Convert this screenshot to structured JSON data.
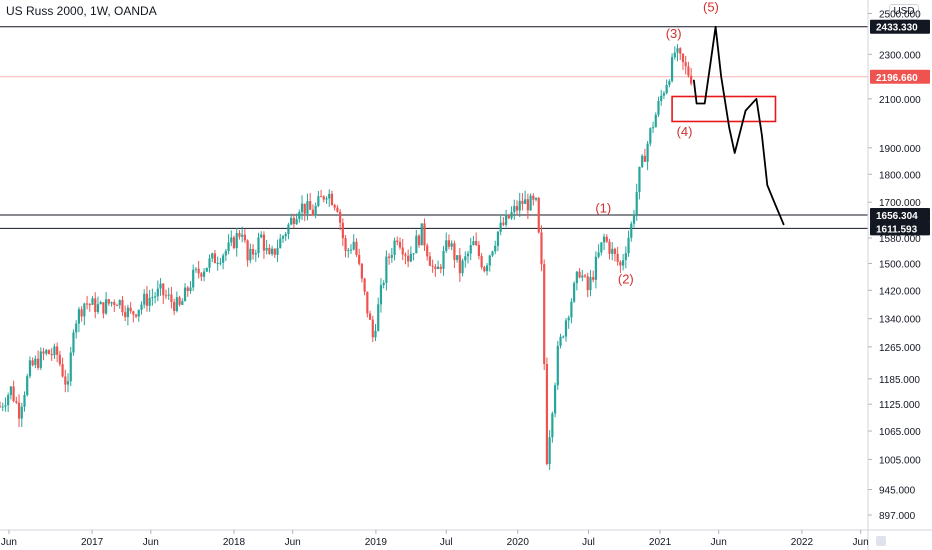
{
  "header": {
    "title": "US Russ 2000, 1W, OANDA",
    "currency": "USD"
  },
  "colors": {
    "up": "#26a69a",
    "down": "#ef5350",
    "level_line": "#131722",
    "box": "#e8171c",
    "label": "#d32f2f",
    "last_price": "#ef5350",
    "drawing": "#000000",
    "axis_text": "#131722"
  },
  "chart_data": {
    "type": "candlestick",
    "symbol": "US Russ 2000",
    "interval": "1W",
    "source": "OANDA",
    "y_scale": "log",
    "y_range": [
      870,
      2570
    ],
    "x_range": [
      "2016-05-09",
      "2022-06-20"
    ],
    "y_ticks": [
      "2500.000",
      "2300.000",
      "2100.000",
      "1900.000",
      "1800.000",
      "1700.000",
      "1580.000",
      "1500.000",
      "1420.000",
      "1340.000",
      "1265.000",
      "1185.000",
      "1125.000",
      "1065.000",
      "1005.000",
      "945.000",
      "897.000"
    ],
    "y_tick_values": [
      2500,
      2300,
      2100,
      1900,
      1800,
      1700,
      1580,
      1500,
      1420,
      1340,
      1265,
      1185,
      1125,
      1065,
      1005,
      945,
      897
    ],
    "x_ticks": [
      {
        "label": "Jun",
        "date": "2016-06-01"
      },
      {
        "label": "2017",
        "date": "2017-01-01"
      },
      {
        "label": "Jun",
        "date": "2017-06-01"
      },
      {
        "label": "2018",
        "date": "2018-01-01"
      },
      {
        "label": "Jun",
        "date": "2018-06-01"
      },
      {
        "label": "2019",
        "date": "2019-01-01"
      },
      {
        "label": "Jul",
        "date": "2019-07-01"
      },
      {
        "label": "2020",
        "date": "2020-01-01"
      },
      {
        "label": "Jul",
        "date": "2020-07-01"
      },
      {
        "label": "2021",
        "date": "2021-01-01"
      },
      {
        "label": "Jun",
        "date": "2021-06-01"
      },
      {
        "label": "2022",
        "date": "2022-01-01"
      },
      {
        "label": "Jun",
        "date": "2022-06-01"
      }
    ],
    "price_path": [
      [
        "2016-05-09",
        1120
      ],
      [
        "2016-06-06",
        1160
      ],
      [
        "2016-06-27",
        1110
      ],
      [
        "2016-07-25",
        1210
      ],
      [
        "2016-09-05",
        1250
      ],
      [
        "2016-10-03",
        1245
      ],
      [
        "2016-10-31",
        1160
      ],
      [
        "2016-11-14",
        1325
      ],
      [
        "2016-12-12",
        1385
      ],
      [
        "2017-01-23",
        1370
      ],
      [
        "2017-03-06",
        1395
      ],
      [
        "2017-04-10",
        1350
      ],
      [
        "2017-05-15",
        1390
      ],
      [
        "2017-06-26",
        1415
      ],
      [
        "2017-08-14",
        1370
      ],
      [
        "2017-09-18",
        1460
      ],
      [
        "2017-11-06",
        1510
      ],
      [
        "2017-12-18",
        1545
      ],
      [
        "2018-01-22",
        1610
      ],
      [
        "2018-02-05",
        1505
      ],
      [
        "2018-03-12",
        1585
      ],
      [
        "2018-04-02",
        1510
      ],
      [
        "2018-05-21",
        1620
      ],
      [
        "2018-06-18",
        1690
      ],
      [
        "2018-07-23",
        1665
      ],
      [
        "2018-08-27",
        1740
      ],
      [
        "2018-09-24",
        1690
      ],
      [
        "2018-10-15",
        1530
      ],
      [
        "2018-11-05",
        1570
      ],
      [
        "2018-12-24",
        1290
      ],
      [
        "2019-01-28",
        1500
      ],
      [
        "2019-02-25",
        1590
      ],
      [
        "2019-03-25",
        1520
      ],
      [
        "2019-04-29",
        1600
      ],
      [
        "2019-06-03",
        1460
      ],
      [
        "2019-07-08",
        1570
      ],
      [
        "2019-08-05",
        1480
      ],
      [
        "2019-09-09",
        1560
      ],
      [
        "2019-10-07",
        1490
      ],
      [
        "2019-11-11",
        1600
      ],
      [
        "2019-12-23",
        1670
      ],
      [
        "2020-01-13",
        1700
      ],
      [
        "2020-02-17",
        1690
      ],
      [
        "2020-03-02",
        1480
      ],
      [
        "2020-03-16",
        1010
      ],
      [
        "2020-04-13",
        1250
      ],
      [
        "2020-05-04",
        1340
      ],
      [
        "2020-06-08",
        1480
      ],
      [
        "2020-06-29",
        1420
      ],
      [
        "2020-08-10",
        1580
      ],
      [
        "2020-09-21",
        1490
      ],
      [
        "2020-10-19",
        1620
      ],
      [
        "2020-11-09",
        1800
      ],
      [
        "2020-12-07",
        1960
      ],
      [
        "2021-01-04",
        2110
      ],
      [
        "2021-02-01",
        2250
      ],
      [
        "2021-02-08",
        2310
      ],
      [
        "2021-03-08",
        2230
      ],
      [
        "2021-03-22",
        2197
      ]
    ],
    "horizontal_levels": [
      {
        "label": "2433.330",
        "value": 2433.33
      },
      {
        "label": "1656.304",
        "value": 1656.304
      },
      {
        "label": "1611.593",
        "value": 1611.593
      }
    ],
    "last_price": {
      "label": "2196.660",
      "value": 2196.66
    },
    "rectangle_zone": {
      "x_start": "2021-02-01",
      "x_end": "2021-10-25",
      "y_low": 2005,
      "y_high": 2110
    },
    "wave_labels": [
      {
        "text": "(1)",
        "date": "2020-08-08",
        "price": 1665
      },
      {
        "text": "(2)",
        "date": "2020-10-05",
        "price": 1440
      },
      {
        "text": "(3)",
        "date": "2021-02-05",
        "price": 2378
      },
      {
        "text": "(4)",
        "date": "2021-03-05",
        "price": 1947
      },
      {
        "text": "(5)",
        "date": "2021-05-12",
        "price": 2510
      }
    ],
    "projection_path": [
      [
        "2021-03-29",
        2180
      ],
      [
        "2021-04-05",
        2080
      ],
      [
        "2021-04-26",
        2080
      ],
      [
        "2021-05-10",
        2250
      ],
      [
        "2021-05-24",
        2433
      ],
      [
        "2021-06-07",
        2200
      ],
      [
        "2021-06-28",
        1980
      ],
      [
        "2021-07-12",
        1880
      ],
      [
        "2021-08-09",
        2050
      ],
      [
        "2021-09-06",
        2100
      ],
      [
        "2021-09-20",
        1950
      ],
      [
        "2021-10-04",
        1760
      ],
      [
        "2021-10-25",
        1690
      ],
      [
        "2021-11-15",
        1625
      ]
    ]
  }
}
